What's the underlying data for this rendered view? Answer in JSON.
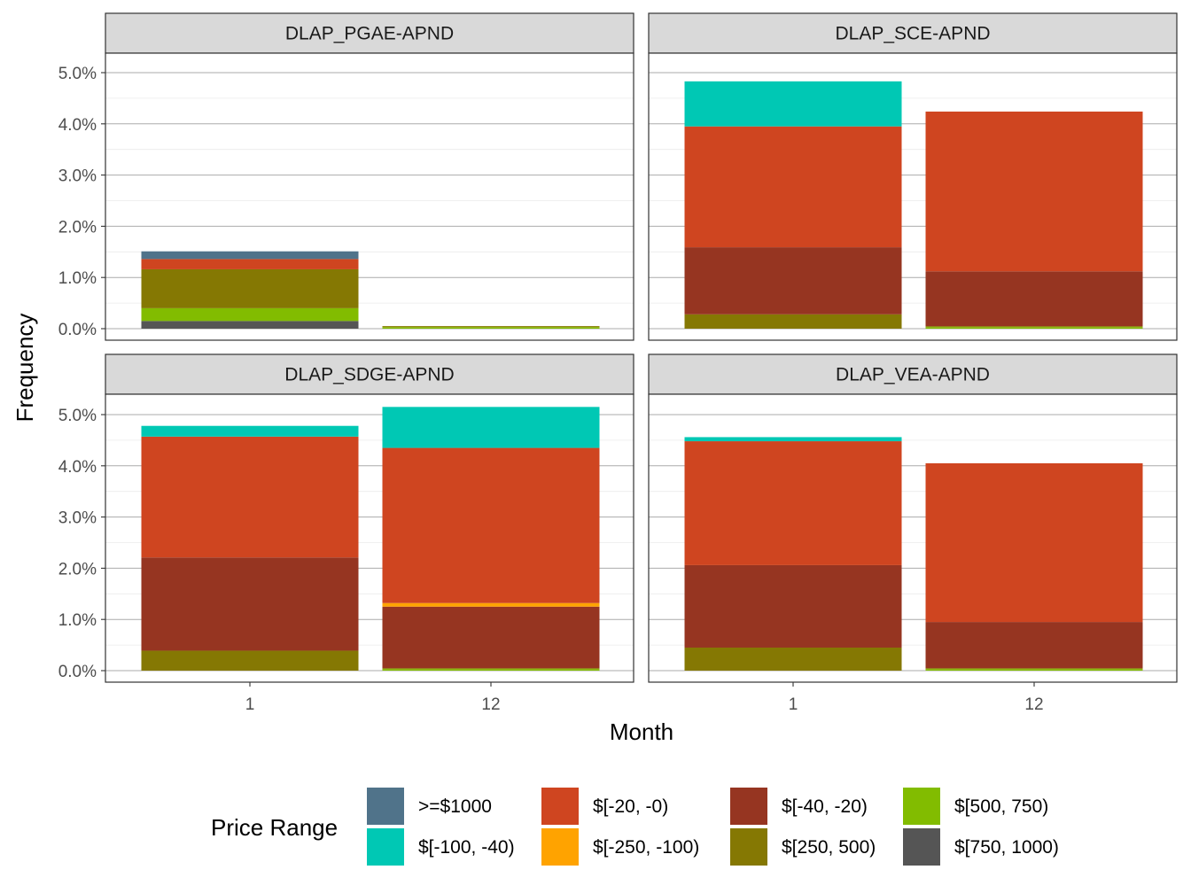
{
  "chart_data": {
    "type": "bar",
    "stacked": true,
    "faceted": true,
    "xlabel": "Month",
    "ylabel": "Frequency",
    "ylim": [
      0,
      0.055
    ],
    "y_ticks": [
      0,
      0.01,
      0.02,
      0.03,
      0.04,
      0.05
    ],
    "y_tick_labels": [
      "0.0%",
      "1.0%",
      "2.0%",
      "3.0%",
      "4.0%",
      "5.0%"
    ],
    "categories": [
      "1",
      "12"
    ],
    "grid": true,
    "legend": {
      "title": "Price Range",
      "position": "bottom",
      "entries": [
        {
          "label": ">=$1000",
          "color": "#50738A"
        },
        {
          "label": "$[-100, -40)",
          "color": "#00C8B4"
        },
        {
          "label": "$[-20, -0)",
          "color": "#CF4520"
        },
        {
          "label": "$[-250, -100)",
          "color": "#FFA300"
        },
        {
          "label": "$[-40, -20)",
          "color": "#963521"
        },
        {
          "label": "$[250, 500)",
          "color": "#857803"
        },
        {
          "label": "$[500, 750)",
          "color": "#82BC00"
        },
        {
          "label": "$[750, 1000)",
          "color": "#555555"
        }
      ]
    },
    "stack_order": [
      "$[750, 1000)",
      "$[500, 750)",
      "$[250, 500)",
      "$[-40, -20)",
      "$[-250, -100)",
      "$[-20, -0)",
      "$[-100, -40)",
      ">=$1000"
    ],
    "facets": [
      {
        "title": "DLAP_PGAE-APND",
        "series": [
          {
            "name": "$[750, 1000)",
            "values": [
              0.0015,
              0
            ]
          },
          {
            "name": "$[500, 750)",
            "values": [
              0.0025,
              0.0003
            ]
          },
          {
            "name": "$[250, 500)",
            "values": [
              0.0076,
              0.0002
            ]
          },
          {
            "name": "$[-40, -20)",
            "values": [
              0,
              0
            ]
          },
          {
            "name": "$[-250, -100)",
            "values": [
              0,
              0
            ]
          },
          {
            "name": "$[-20, -0)",
            "values": [
              0.002,
              0
            ]
          },
          {
            "name": "$[-100, -40)",
            "values": [
              0,
              0
            ]
          },
          {
            "name": ">=$1000",
            "values": [
              0.0015,
              0
            ]
          }
        ]
      },
      {
        "title": "DLAP_SCE-APND",
        "series": [
          {
            "name": "$[750, 1000)",
            "values": [
              0,
              0
            ]
          },
          {
            "name": "$[500, 750)",
            "values": [
              0,
              0.0003
            ]
          },
          {
            "name": "$[250, 500)",
            "values": [
              0.0028,
              0.0002
            ]
          },
          {
            "name": "$[-40, -20)",
            "values": [
              0.0131,
              0.0107
            ]
          },
          {
            "name": "$[-250, -100)",
            "values": [
              0,
              0
            ]
          },
          {
            "name": "$[-20, -0)",
            "values": [
              0.0236,
              0.0312
            ]
          },
          {
            "name": "$[-100, -40)",
            "values": [
              0.0088,
              0
            ]
          },
          {
            "name": ">=$1000",
            "values": [
              0,
              0
            ]
          }
        ]
      },
      {
        "title": "DLAP_SDGE-APND",
        "series": [
          {
            "name": "$[750, 1000)",
            "values": [
              0,
              0
            ]
          },
          {
            "name": "$[500, 750)",
            "values": [
              0,
              0.0003
            ]
          },
          {
            "name": "$[250, 500)",
            "values": [
              0.0039,
              0.0002
            ]
          },
          {
            "name": "$[-40, -20)",
            "values": [
              0.0182,
              0.012
            ]
          },
          {
            "name": "$[-250, -100)",
            "values": [
              0,
              0.0007
            ]
          },
          {
            "name": "$[-20, -0)",
            "values": [
              0.0236,
              0.0303
            ]
          },
          {
            "name": "$[-100, -40)",
            "values": [
              0.0021,
              0.008
            ]
          },
          {
            "name": ">=$1000",
            "values": [
              0,
              0
            ]
          }
        ]
      },
      {
        "title": "DLAP_VEA-APND",
        "series": [
          {
            "name": "$[750, 1000)",
            "values": [
              0,
              0
            ]
          },
          {
            "name": "$[500, 750)",
            "values": [
              0,
              0.0003
            ]
          },
          {
            "name": "$[250, 500)",
            "values": [
              0.0045,
              0.0002
            ]
          },
          {
            "name": "$[-40, -20)",
            "values": [
              0.0161,
              0.009
            ]
          },
          {
            "name": "$[-250, -100)",
            "values": [
              0,
              0
            ]
          },
          {
            "name": "$[-20, -0)",
            "values": [
              0.0242,
              0.031
            ]
          },
          {
            "name": "$[-100, -40)",
            "values": [
              0.0008,
              0
            ]
          },
          {
            "name": ">=$1000",
            "values": [
              0,
              0
            ]
          }
        ]
      }
    ]
  }
}
